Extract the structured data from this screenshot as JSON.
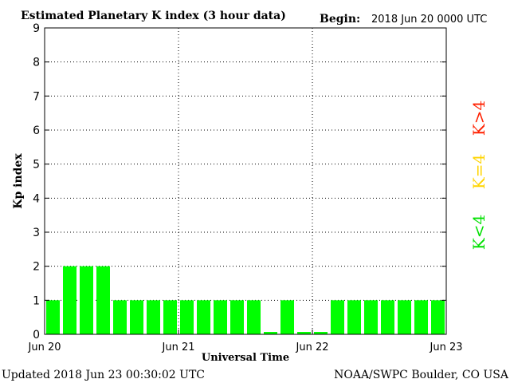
{
  "header": {
    "title": "Estimated Planetary K index (3 hour data)",
    "begin_label": "Begin:",
    "begin_value": "2018 Jun 20 0000 UTC"
  },
  "footer": {
    "updated": "Updated 2018 Jun 23 00:30:02 UTC",
    "source": "NOAA/SWPC Boulder, CO USA"
  },
  "legend": {
    "high": "K>4",
    "mid": "K=4",
    "low": "K<4",
    "colors": {
      "high": "#ff2000",
      "mid": "#ffd400",
      "low": "#00ff00"
    }
  },
  "chart_data": {
    "type": "bar",
    "title": "Estimated Planetary K index (3 hour data)",
    "xlabel": "Universal Time",
    "ylabel": "Kp index",
    "ylim": [
      0,
      9
    ],
    "yticks": [
      0,
      1,
      2,
      3,
      4,
      5,
      6,
      7,
      8,
      9
    ],
    "xticks": [
      "Jun 20",
      "Jun 21",
      "Jun 22",
      "Jun 23"
    ],
    "grid": true,
    "bar_color": "#00ff00",
    "values": [
      1,
      2,
      2,
      2,
      1,
      1,
      1,
      1,
      1,
      1,
      1,
      1,
      1,
      0.07,
      1,
      0.07,
      0.07,
      1,
      1,
      1,
      1,
      1,
      1,
      1
    ]
  }
}
